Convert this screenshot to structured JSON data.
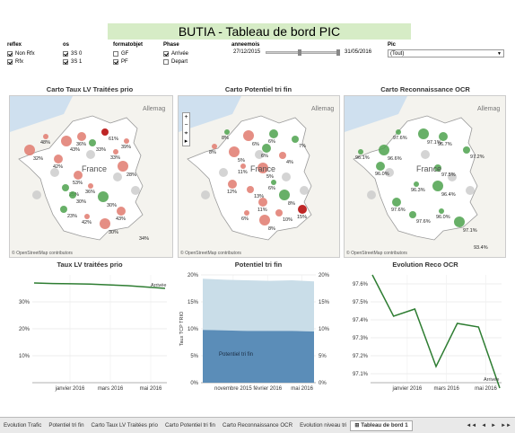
{
  "title": "BUTIA - Tableau de bord PIC",
  "filters": {
    "reflex": {
      "label": "reflex",
      "items": [
        {
          "label": "Non Rfx",
          "checked": true
        },
        {
          "label": "Rfx",
          "checked": true
        }
      ]
    },
    "os": {
      "label": "os",
      "items": [
        {
          "label": "3S 0",
          "checked": true
        },
        {
          "label": "3S 1",
          "checked": true
        }
      ]
    },
    "formatobjet": {
      "label": "formatobjet",
      "items": [
        {
          "label": "GF",
          "checked": false
        },
        {
          "label": "PF",
          "checked": true
        }
      ]
    },
    "phase": {
      "label": "Phase",
      "items": [
        {
          "label": "Arrivée",
          "checked": true
        },
        {
          "label": "Depart",
          "checked": false
        }
      ]
    },
    "anneemois": {
      "label": "anneemois",
      "start": "27/12/2015",
      "end": "31/05/2016"
    },
    "pic": {
      "label": "Pic",
      "value": "(Tout)"
    }
  },
  "maps": [
    {
      "title": "Carto Taux LV Traitées prio",
      "city_label": "France",
      "region_label": "Allemag",
      "attribution": "© OpenStreetMap contributors",
      "labels": [
        "48%",
        "43%",
        "36%",
        "61%",
        "39%",
        "32%",
        "42%",
        "33%",
        "33%",
        "28%",
        "53%",
        "25%",
        "36%",
        "30%",
        "43%",
        "23%",
        "42%",
        "30%",
        "34%",
        "30%"
      ]
    },
    {
      "title": "Carto Potentiel tri fin",
      "city_label": "France",
      "region_label": "Allemag",
      "attribution": "© OpenStreetMap contributors",
      "labels": [
        "8%",
        "6%",
        "6%",
        "7%",
        "8%",
        "5%",
        "6%",
        "4%",
        "11%",
        "5%",
        "12%",
        "13%",
        "6%",
        "8%",
        "11%",
        "10%",
        "6%",
        "8%",
        "15%"
      ]
    },
    {
      "title": "Carto Reconnaissance OCR",
      "city_label": "France",
      "region_label": "Allemag",
      "attribution": "© OpenStreetMap contributors",
      "labels": [
        "97.6%",
        "97.1%",
        "96.7%",
        "97.2%",
        "96.1%",
        "96.6%",
        "96.0%",
        "97.5%",
        "96.3%",
        "96.4%",
        "97.6%",
        "97.6%",
        "96.0%",
        "97.1%",
        "93.4%"
      ]
    }
  ],
  "chart_data": [
    {
      "type": "line",
      "title": "Taux LV traitées prio",
      "series": [
        {
          "name": "Arrivée",
          "values": [
            0.37,
            0.368,
            0.367,
            0.366,
            0.363,
            0.36,
            0.355,
            0.35
          ]
        }
      ],
      "x_ticks": [
        "janvier 2016",
        "mars 2016",
        "mai 2016"
      ],
      "y_ticks": [
        "10%",
        "20%",
        "30%"
      ],
      "ylim": [
        0,
        0.4
      ],
      "grid": true
    },
    {
      "type": "area",
      "title": "Potentiel tri fin",
      "ylabel": "Taux TCP TRIO",
      "series": [
        {
          "name": "Potentiel tri fin",
          "values": [
            0.098,
            0.097,
            0.096,
            0.096,
            0.096,
            0.095
          ]
        },
        {
          "name": "",
          "values": [
            0.193,
            0.191,
            0.19,
            0.189,
            0.19,
            0.188
          ]
        }
      ],
      "x_ticks": [
        "novembre 2015",
        "février 2016",
        "mai 2016"
      ],
      "y_ticks": [
        "0%",
        "5%",
        "10%",
        "15%",
        "20%"
      ],
      "ylim": [
        0,
        0.2
      ],
      "grid": true
    },
    {
      "type": "line",
      "title": "Evolution Reco OCR",
      "series": [
        {
          "name": "Arrivée",
          "values": [
            0.9765,
            0.9742,
            0.9746,
            0.9714,
            0.9738,
            0.9736,
            0.9702
          ]
        }
      ],
      "x_ticks": [
        "janvier 2016",
        "mars 2016",
        "mai 2016"
      ],
      "y_ticks": [
        "97.1%",
        "97.2%",
        "97.3%",
        "97.4%",
        "97.5%",
        "97.6%"
      ],
      "ylim": [
        0.9705,
        0.9765
      ],
      "grid": true
    }
  ],
  "tabs": [
    "Evolution Trafic",
    "Potentiel tri fin",
    "Carto Taux LV Traitées prio",
    "Carto Potentiel tri fin",
    "Carto Reconnaissance OCR",
    "Evolution niveau tri",
    "Tableau de bord 1"
  ],
  "active_tab": "Tableau de bord 1",
  "tab_nav": [
    "◄◄",
    "◄",
    "►",
    "►►"
  ],
  "colors": {
    "title_bg": "#d6ecc6",
    "line": "#2e7d32",
    "area_dark": "#5b8db8",
    "area_light": "#c9dde8",
    "bubble_red": "#d9534f",
    "bubble_green": "#3d9a3d",
    "bubble_grey": "#b5b5b5"
  }
}
